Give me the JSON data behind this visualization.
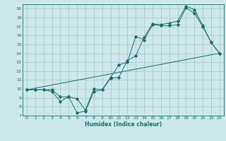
{
  "title": "",
  "xlabel": "Humidex (Indice chaleur)",
  "xlim": [
    -0.5,
    23.5
  ],
  "ylim": [
    7,
    19.5
  ],
  "yticks": [
    7,
    8,
    9,
    10,
    11,
    12,
    13,
    14,
    15,
    16,
    17,
    18,
    19
  ],
  "xticks": [
    0,
    1,
    2,
    3,
    4,
    5,
    6,
    7,
    8,
    9,
    10,
    11,
    12,
    13,
    14,
    15,
    16,
    17,
    18,
    19,
    20,
    21,
    22,
    23
  ],
  "bg_color": "#cce8e8",
  "grid_color": "#aacccc",
  "line_color": "#1a7070",
  "series1_x": [
    0,
    1,
    2,
    3,
    4,
    5,
    6,
    7,
    8,
    9,
    10,
    11,
    12,
    13,
    14,
    15,
    16,
    17,
    18,
    19,
    20,
    21,
    22,
    23
  ],
  "series1_y": [
    9.9,
    9.9,
    9.9,
    9.7,
    8.6,
    9.1,
    7.3,
    7.5,
    9.7,
    9.9,
    11.3,
    12.7,
    13.0,
    15.9,
    15.5,
    17.2,
    17.1,
    17.1,
    17.2,
    19.1,
    18.5,
    17.0,
    15.2,
    14.0
  ],
  "series2_x": [
    0,
    1,
    2,
    3,
    4,
    5,
    6,
    7,
    8,
    9,
    10,
    11,
    12,
    13,
    14,
    15,
    16,
    17,
    18,
    19,
    20,
    21,
    22,
    23
  ],
  "series2_y": [
    9.9,
    9.9,
    9.9,
    9.9,
    9.1,
    9.1,
    8.9,
    7.6,
    10.0,
    9.9,
    11.2,
    11.3,
    13.2,
    13.7,
    15.8,
    17.3,
    17.2,
    17.4,
    17.6,
    19.3,
    18.9,
    17.1,
    15.2,
    14.0
  ],
  "series3_x": [
    0,
    23
  ],
  "series3_y": [
    9.9,
    14.0
  ],
  "marker": "D",
  "markersize": 1.8,
  "linewidth": 0.7
}
